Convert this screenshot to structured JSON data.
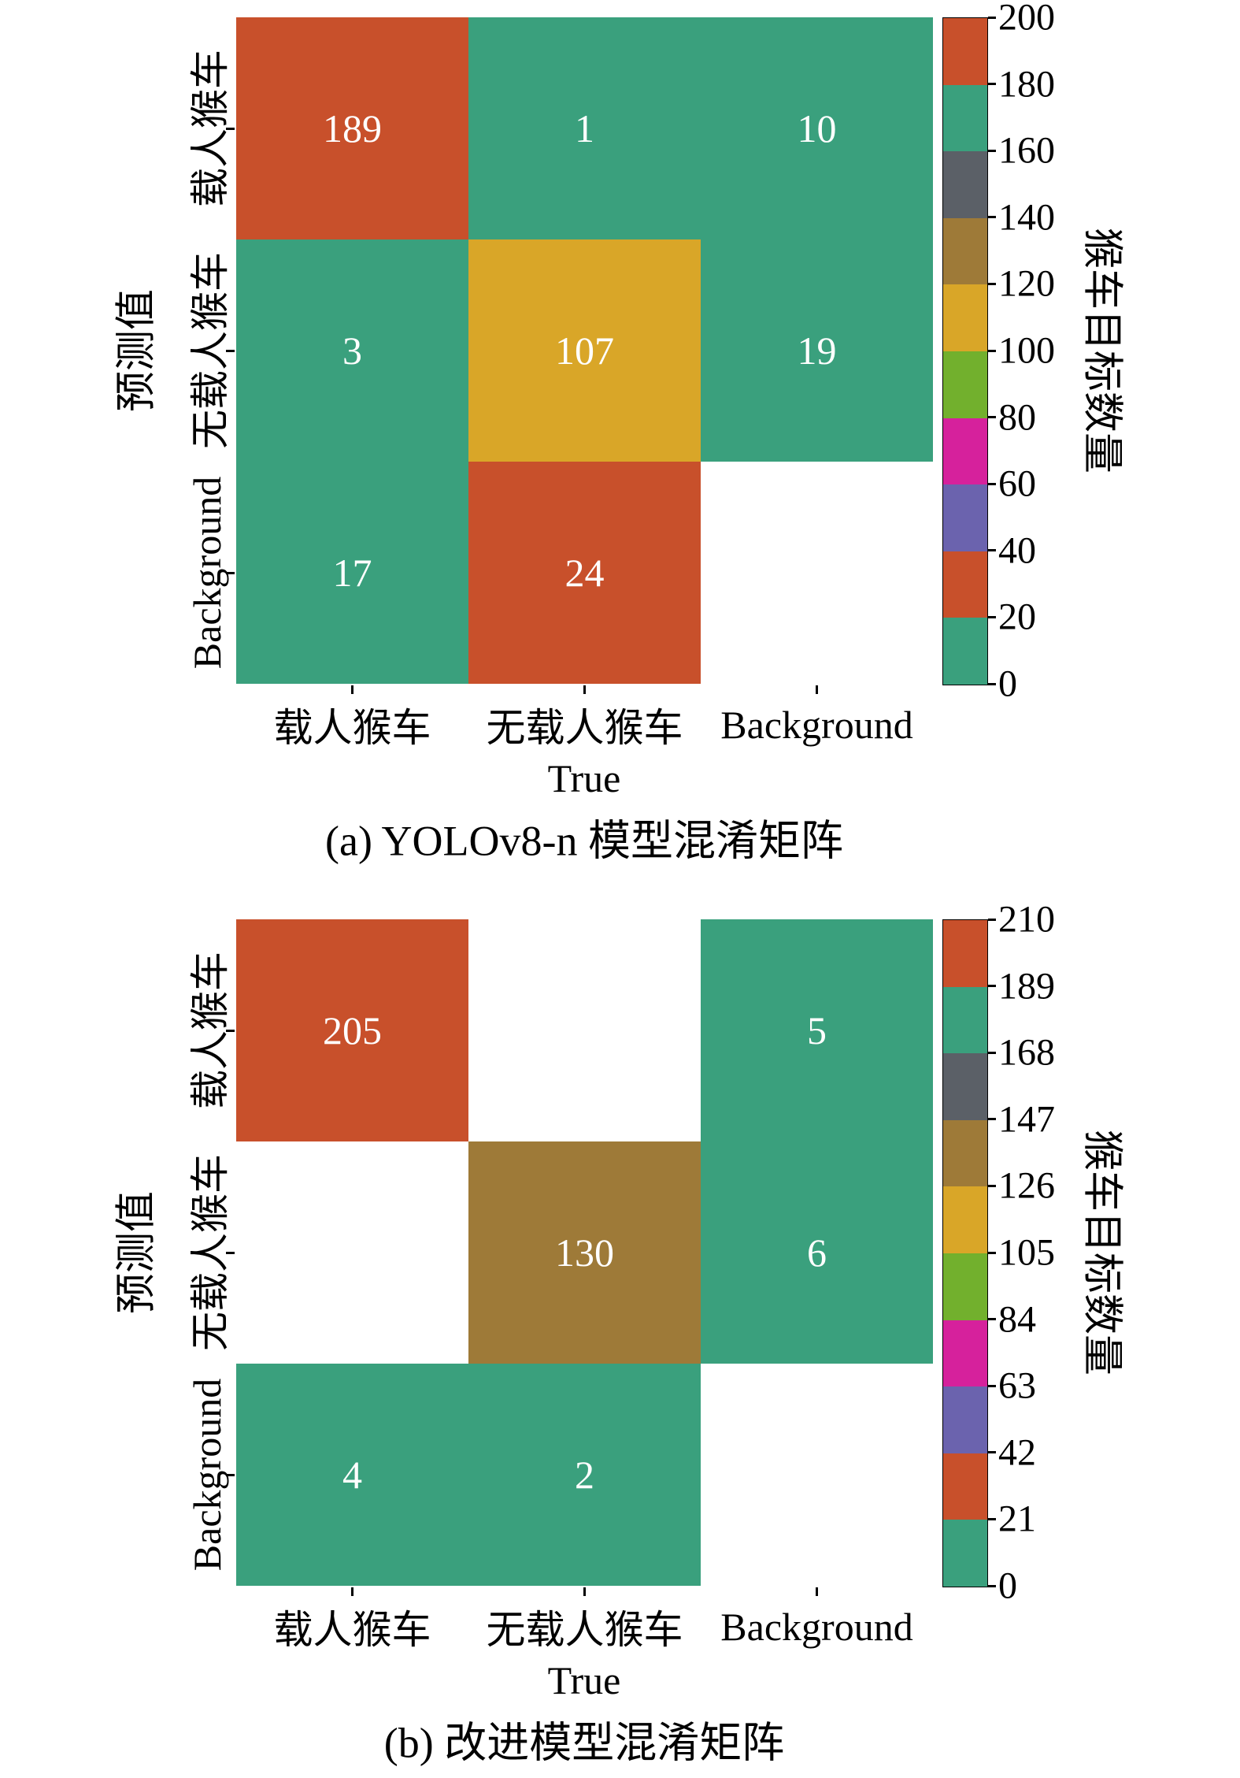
{
  "page": {
    "background": "#ffffff"
  },
  "colors": {
    "teal": "#3aa07d",
    "orange": "#c8502b",
    "purple": "#6b63ae",
    "magenta": "#d6219c",
    "green": "#72b02d",
    "yellow": "#d9a628",
    "brown": "#9e7a38",
    "gray": "#5b6067",
    "empty_cell": "#ffffff",
    "cell_text": "#ffffff",
    "axis": "#000000"
  },
  "chart_data": [
    {
      "type": "heatmap",
      "title": "(a) YOLOv8-n 模型混淆矩阵",
      "xlabel": "True",
      "ylabel": "预测值",
      "x_categories": [
        "载人猴车",
        "无载人猴车",
        "Background"
      ],
      "y_categories": [
        "载人猴车",
        "无载人猴车",
        "Background"
      ],
      "values": [
        [
          189,
          1,
          10
        ],
        [
          3,
          107,
          19
        ],
        [
          17,
          24,
          null
        ]
      ],
      "value_range": [
        0,
        200
      ],
      "grid": false,
      "colorbar": {
        "label": "猴车目标数量",
        "position": "right",
        "ticks": [
          0,
          20,
          40,
          60,
          80,
          100,
          120,
          140,
          160,
          180,
          200
        ],
        "segment_colors_bottom_to_top": [
          "teal",
          "orange",
          "purple",
          "magenta",
          "green",
          "yellow",
          "brown",
          "gray",
          "teal",
          "orange"
        ]
      }
    },
    {
      "type": "heatmap",
      "title": "(b) 改进模型混淆矩阵",
      "xlabel": "True",
      "ylabel": "预测值",
      "x_categories": [
        "载人猴车",
        "无载人猴车",
        "Background"
      ],
      "y_categories": [
        "载人猴车",
        "无载人猴车",
        "Background"
      ],
      "values": [
        [
          205,
          null,
          5
        ],
        [
          null,
          130,
          6
        ],
        [
          4,
          2,
          null
        ]
      ],
      "value_range": [
        0,
        210
      ],
      "grid": false,
      "colorbar": {
        "label": "猴车目标数量",
        "position": "right",
        "ticks": [
          0,
          21,
          42,
          63,
          84,
          105,
          126,
          147,
          168,
          189,
          210
        ],
        "segment_colors_bottom_to_top": [
          "teal",
          "orange",
          "purple",
          "magenta",
          "green",
          "yellow",
          "brown",
          "gray",
          "teal",
          "orange"
        ]
      }
    }
  ]
}
